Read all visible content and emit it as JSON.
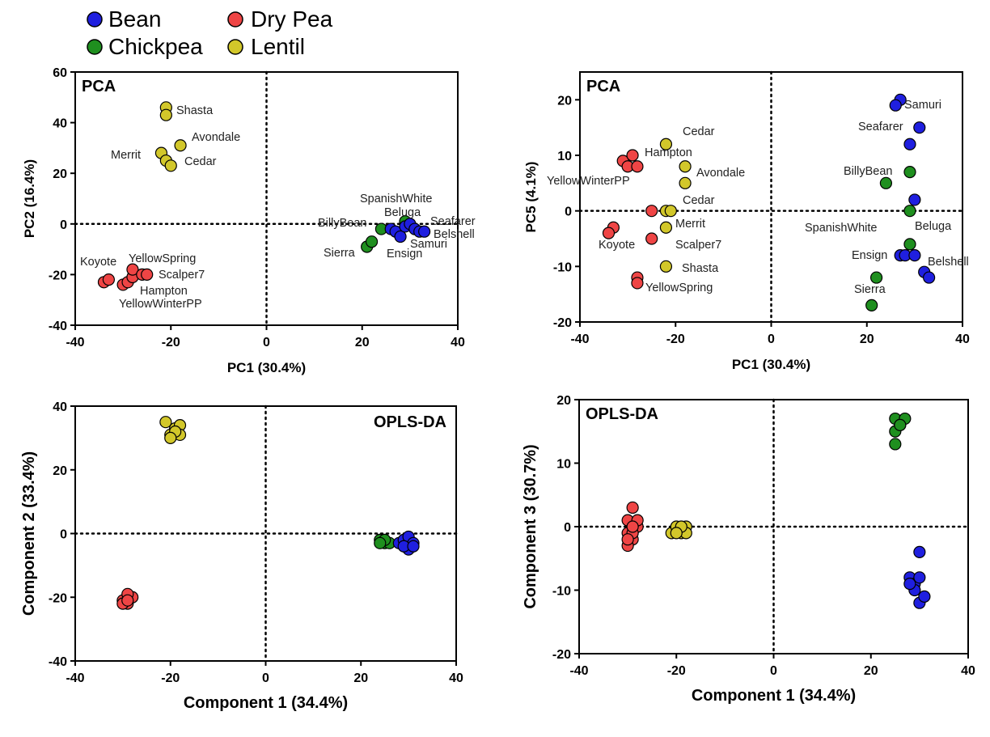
{
  "legend": {
    "entries": [
      {
        "name": "Bean",
        "color": "#1f1fdf"
      },
      {
        "name": "Dry Pea",
        "color": "#ef4545"
      },
      {
        "name": "Chickpea",
        "color": "#1f8f1f"
      },
      {
        "name": "Lentil",
        "color": "#d2c72a"
      }
    ]
  },
  "chart_data": [
    {
      "type": "scatter",
      "title": "PCA",
      "xlabel": "PC1 (30.4%)",
      "ylabel": "PC2 (16.4%)",
      "xlim": [
        -40,
        40
      ],
      "ylim": [
        -40,
        60
      ],
      "xticks": [
        -40,
        -20,
        0,
        20,
        40
      ],
      "yticks": [
        -40,
        -20,
        0,
        20,
        40,
        60
      ],
      "reference_lines": {
        "x": 0,
        "y": 0
      },
      "series": [
        {
          "name": "Lentil",
          "points": [
            [
              -21,
              46
            ],
            [
              -21,
              43
            ],
            [
              -18,
              31
            ],
            [
              -22,
              28
            ],
            [
              -21,
              25
            ],
            [
              -20,
              23
            ]
          ]
        },
        {
          "name": "Dry Pea",
          "points": [
            [
              -34,
              -23
            ],
            [
              -33,
              -22
            ],
            [
              -30,
              -24
            ],
            [
              -29,
              -23
            ],
            [
              -28,
              -21
            ],
            [
              -28,
              -18
            ],
            [
              -26,
              -20
            ],
            [
              -25,
              -20
            ]
          ]
        },
        {
          "name": "Chickpea",
          "points": [
            [
              21,
              -9
            ],
            [
              22,
              -7
            ],
            [
              24,
              -2
            ],
            [
              29,
              1
            ]
          ]
        },
        {
          "name": "Bean",
          "points": [
            [
              26,
              -2
            ],
            [
              27,
              -3
            ],
            [
              28,
              -5
            ],
            [
              29,
              -1
            ],
            [
              30,
              0
            ],
            [
              31,
              -2
            ],
            [
              32,
              -3
            ],
            [
              33,
              -3
            ]
          ]
        }
      ],
      "annotations": [
        "Shasta",
        "Avondale",
        "Merrit",
        "Cedar",
        "SpanishWhite",
        "Beluga",
        "BillyBean",
        "Seafarer",
        "Belshell",
        "Sierra",
        "Ensign",
        "Samuri",
        "Koyote",
        "YellowSpring",
        "Scalper7",
        "Hampton",
        "YellowWinterPP"
      ]
    },
    {
      "type": "scatter",
      "title": "PCA",
      "xlabel": "PC1 (30.4%)",
      "ylabel": "PC5 (4.1%)",
      "xlim": [
        -40,
        40
      ],
      "ylim": [
        -20,
        25
      ],
      "xticks": [
        -40,
        -20,
        0,
        20,
        40
      ],
      "yticks": [
        -20,
        -10,
        0,
        10,
        20
      ],
      "reference_lines": {
        "x": 0,
        "y": 0
      },
      "series": [
        {
          "name": "Lentil",
          "points": [
            [
              -22,
              12
            ],
            [
              -18,
              8
            ],
            [
              -18,
              5
            ],
            [
              -22,
              0
            ],
            [
              -21,
              0
            ],
            [
              -22,
              -3
            ],
            [
              -22,
              -10
            ]
          ]
        },
        {
          "name": "Dry Pea",
          "points": [
            [
              -31,
              9
            ],
            [
              -29,
              10
            ],
            [
              -30,
              8
            ],
            [
              -28,
              8
            ],
            [
              -33,
              -3
            ],
            [
              -34,
              -4
            ],
            [
              -25,
              0
            ],
            [
              -25,
              -5
            ],
            [
              -28,
              -12
            ],
            [
              -28,
              -13
            ]
          ]
        },
        {
          "name": "Chickpea",
          "points": [
            [
              29,
              7
            ],
            [
              24,
              5
            ],
            [
              29,
              0
            ],
            [
              29,
              -6
            ],
            [
              22,
              -12
            ],
            [
              21,
              -17
            ]
          ]
        },
        {
          "name": "Bean",
          "points": [
            [
              27,
              20
            ],
            [
              26,
              19
            ],
            [
              31,
              15
            ],
            [
              29,
              12
            ],
            [
              30,
              2
            ],
            [
              27,
              -8
            ],
            [
              28,
              -8
            ],
            [
              30,
              -8
            ],
            [
              32,
              -11
            ],
            [
              33,
              -12
            ]
          ]
        }
      ],
      "annotations": [
        "Samuri",
        "Seafarer",
        "BillyBean",
        "SpanishWhite",
        "Beluga",
        "Ensign",
        "Belshell",
        "Sierra",
        "Cedar",
        "Hampton",
        "Avondale",
        "YellowWinterPP",
        "Cedar",
        "Merrit",
        "Koyote",
        "Scalper7",
        "Shasta",
        "YellowSpring"
      ]
    },
    {
      "type": "scatter",
      "title": "OPLS-DA",
      "xlabel": "Component 1 (34.4%)",
      "ylabel": "Component 2 (33.4%)",
      "xlim": [
        -40,
        40
      ],
      "ylim": [
        -40,
        40
      ],
      "xticks": [
        -40,
        -20,
        0,
        20,
        40
      ],
      "yticks": [
        -40,
        -20,
        0,
        20,
        40
      ],
      "reference_lines": {
        "x": 0,
        "y": 0
      },
      "series": [
        {
          "name": "Lentil",
          "points": [
            [
              -21,
              35
            ],
            [
              -19,
              33
            ],
            [
              -18,
              34
            ],
            [
              -20,
              31
            ],
            [
              -18,
              31
            ],
            [
              -19,
              32
            ],
            [
              -20,
              30
            ]
          ]
        },
        {
          "name": "Dry Pea",
          "points": [
            [
              -30,
              -21
            ],
            [
              -29,
              -22
            ],
            [
              -28,
              -20
            ],
            [
              -29,
              -19
            ],
            [
              -30,
              -22
            ],
            [
              -29,
              -21
            ]
          ]
        },
        {
          "name": "Chickpea",
          "points": [
            [
              24,
              -2
            ],
            [
              25,
              -3
            ],
            [
              26,
              -3
            ],
            [
              25,
              -2
            ],
            [
              24,
              -3
            ]
          ]
        },
        {
          "name": "Bean",
          "points": [
            [
              28,
              -3
            ],
            [
              29,
              -2
            ],
            [
              30,
              -1
            ],
            [
              31,
              -3
            ],
            [
              30,
              -5
            ],
            [
              29,
              -4
            ],
            [
              31,
              -4
            ]
          ]
        }
      ]
    },
    {
      "type": "scatter",
      "title": "OPLS-DA",
      "xlabel": "Component 1 (34.4%)",
      "ylabel": "Component 3 (30.7%)",
      "xlim": [
        -40,
        40
      ],
      "ylim": [
        -20,
        20
      ],
      "xticks": [
        -40,
        -20,
        0,
        20,
        40
      ],
      "yticks": [
        -20,
        -10,
        0,
        10,
        20
      ],
      "reference_lines": {
        "x": 0,
        "y": 0
      },
      "series": [
        {
          "name": "Dry Pea",
          "points": [
            [
              -30,
              1
            ],
            [
              -29,
              3
            ],
            [
              -28,
              0
            ],
            [
              -30,
              -1
            ],
            [
              -29,
              -2
            ],
            [
              -30,
              -3
            ],
            [
              -29,
              -1
            ],
            [
              -28,
              1
            ],
            [
              -30,
              -2
            ],
            [
              -29,
              0
            ]
          ]
        },
        {
          "name": "Lentil",
          "points": [
            [
              -21,
              -1
            ],
            [
              -20,
              0
            ],
            [
              -19,
              -1
            ],
            [
              -18,
              0
            ],
            [
              -18,
              -1
            ],
            [
              -19,
              0
            ],
            [
              -20,
              -1
            ]
          ]
        },
        {
          "name": "Chickpea",
          "points": [
            [
              25,
              17
            ],
            [
              26,
              16
            ],
            [
              27,
              17
            ],
            [
              25,
              15
            ],
            [
              26,
              16
            ],
            [
              25,
              13
            ]
          ]
        },
        {
          "name": "Bean",
          "points": [
            [
              30,
              -4
            ],
            [
              28,
              -8
            ],
            [
              29,
              -9
            ],
            [
              30,
              -8
            ],
            [
              29,
              -10
            ],
            [
              30,
              -12
            ],
            [
              31,
              -11
            ],
            [
              28,
              -9
            ]
          ]
        }
      ]
    }
  ]
}
